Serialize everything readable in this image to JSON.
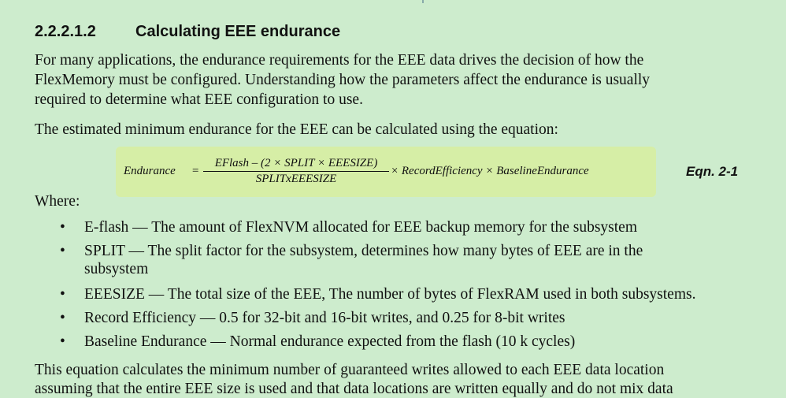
{
  "section": {
    "number": "2.2.2.1.2",
    "title": "Calculating EEE endurance"
  },
  "paragraphs": [
    [
      "For many applications, the endurance requirements for the EEE data drives the decision of how the",
      "FlexMemory must be configured. Understanding how the parameters affect the endurance is usually",
      "required to determine what EEE configuration to use."
    ],
    [
      "The estimated minimum endurance for the EEE can be calculated using the equation:"
    ]
  ],
  "equation": {
    "lhs": "Endurance",
    "equals": "=",
    "numerator": "EFlash – (2 × SPLIT × EEESIZE)",
    "denominator": "SPLITxEEESIZE",
    "rhs": "× RecordEfficiency × BaselineEndurance",
    "label": "Eqn. 2-1",
    "highlight_color": "#d6eea6"
  },
  "where_label": "Where:",
  "bullets": [
    [
      "E-flash — The amount of FlexNVM allocated for EEE backup memory for the subsystem"
    ],
    [
      "SPLIT — The split factor for the subsystem, determines how many bytes of EEE are in the",
      "subsystem"
    ],
    [
      "EEESIZE — The total size of the EEE, The number of bytes of FlexRAM used in both subsystems."
    ],
    [
      "Record Efficiency — 0.5 for 32-bit and 16-bit writes, and 0.25 for 8-bit writes"
    ],
    [
      "Baseline Endurance — Normal endurance expected from the flash (10 k cycles)"
    ]
  ],
  "bullet_glyph": "•",
  "closing_paragraph": [
    "This equation calculates the minimum number of guaranteed writes allowed to each EEE data location",
    "assuming that the entire EEE size is used and that data locations are written equally and do not mix data"
  ],
  "background_color": "#cdeccd"
}
